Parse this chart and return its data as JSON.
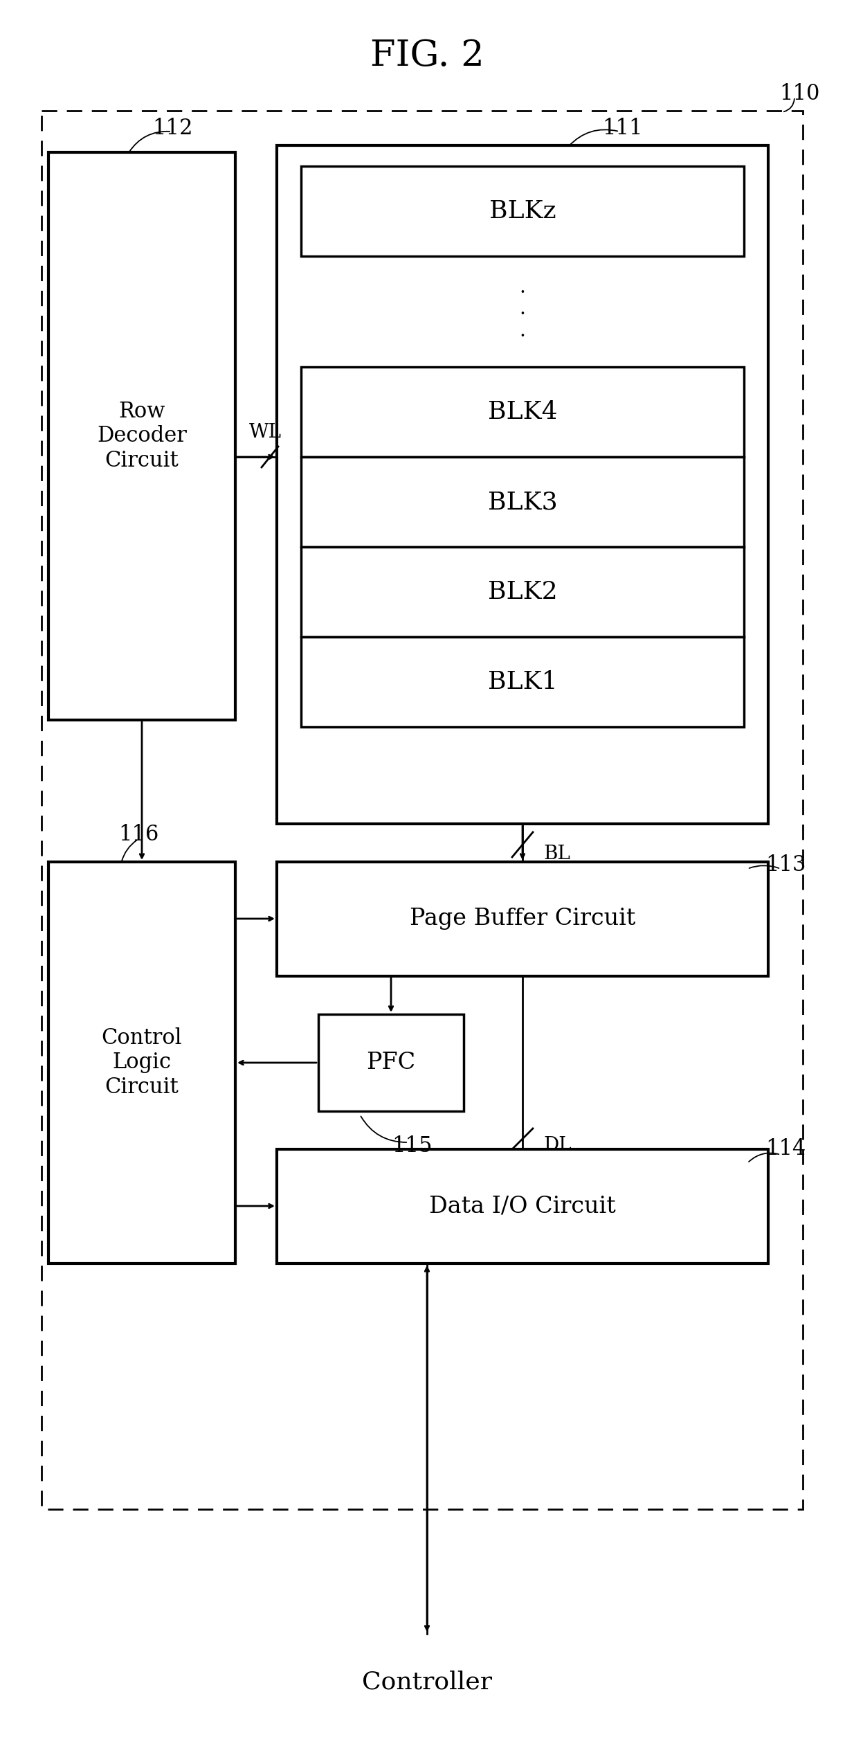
{
  "title": "FIG. 2",
  "bg_color": "#ffffff",
  "fig_width": 12.34,
  "fig_height": 25.22,
  "label_110": "110",
  "label_111": "111",
  "label_112": "112",
  "label_113": "113",
  "label_114": "114",
  "label_115": "115",
  "label_116": "116",
  "blk_labels": [
    "BLKz",
    "BLK4",
    "BLK3",
    "BLK2",
    "BLK1"
  ],
  "row_decoder_text": "Row\nDecoder\nCircuit",
  "page_buffer_text": "Page Buffer Circuit",
  "data_io_text": "Data I/O Circuit",
  "control_logic_text": "Control\nLogic\nCircuit",
  "pfc_text": "PFC",
  "wl_text": "WL",
  "bl_text": "BL",
  "dl_text": "DL",
  "controller_text": "Controller"
}
